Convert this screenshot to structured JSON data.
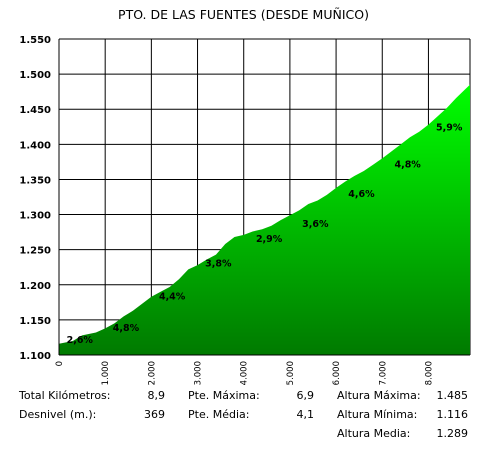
{
  "chart_data": {
    "type": "area",
    "title": "PTO. DE LAS FUENTES (DESDE MUÑICO)",
    "xlabel": "",
    "ylabel": "",
    "xlim": [
      0,
      8.9
    ],
    "ylim": [
      1.1,
      1.55
    ],
    "x_ticks": [
      "0",
      "1.000",
      "2.000",
      "3.000",
      "4.000",
      "5.000",
      "6.000",
      "7.000",
      "8.000"
    ],
    "y_ticks": [
      "1.100",
      "1.150",
      "1.200",
      "1.250",
      "1.300",
      "1.350",
      "1.400",
      "1.450",
      "1.500",
      "1.550"
    ],
    "grid": true,
    "legend": "none",
    "fill_color_top": "#00ff00",
    "fill_color_bottom": "#007a00",
    "series": [
      {
        "x": [
          0,
          0.3,
          0.5,
          0.8,
          1.0,
          1.2,
          1.4,
          1.6,
          1.8,
          2.0,
          2.2,
          2.4,
          2.6,
          2.8,
          3.0,
          3.2,
          3.4,
          3.6,
          3.8,
          4.0,
          4.2,
          4.4,
          4.6,
          4.8,
          5.0,
          5.2,
          5.4,
          5.6,
          5.8,
          6.0,
          6.2,
          6.4,
          6.6,
          6.8,
          7.0,
          7.2,
          7.4,
          7.6,
          7.8,
          8.0,
          8.2,
          8.4,
          8.6,
          8.9
        ],
        "values": [
          1.116,
          1.12,
          1.128,
          1.132,
          1.138,
          1.145,
          1.155,
          1.163,
          1.173,
          1.183,
          1.19,
          1.197,
          1.208,
          1.222,
          1.228,
          1.236,
          1.243,
          1.258,
          1.268,
          1.271,
          1.276,
          1.279,
          1.284,
          1.292,
          1.299,
          1.306,
          1.315,
          1.32,
          1.328,
          1.338,
          1.347,
          1.355,
          1.362,
          1.371,
          1.38,
          1.39,
          1.4,
          1.41,
          1.418,
          1.428,
          1.44,
          1.452,
          1.466,
          1.485
        ]
      }
    ],
    "data_labels": [
      {
        "x": 0.45,
        "y": 1.117,
        "text": "2,6%"
      },
      {
        "x": 1.45,
        "y": 1.134,
        "text": "4,8%"
      },
      {
        "x": 2.45,
        "y": 1.179,
        "text": "4,4%"
      },
      {
        "x": 3.45,
        "y": 1.226,
        "text": "3,8%"
      },
      {
        "x": 4.55,
        "y": 1.261,
        "text": "2,9%"
      },
      {
        "x": 5.55,
        "y": 1.282,
        "text": "3,6%"
      },
      {
        "x": 6.55,
        "y": 1.325,
        "text": "4,6%"
      },
      {
        "x": 7.55,
        "y": 1.367,
        "text": "4,8%"
      },
      {
        "x": 8.45,
        "y": 1.42,
        "text": "5,9%"
      }
    ]
  },
  "stats": {
    "total_km_label": "Total Kilómetros:",
    "total_km_value": "8,9",
    "desnivel_label": "Desnivel (m.):",
    "desnivel_value": "369",
    "pte_maxima_label": "Pte. Máxima:",
    "pte_maxima_value": "6,9",
    "pte_media_label": "Pte. Média:",
    "pte_media_value": "4,1",
    "altura_maxima_label": "Altura Máxima:",
    "altura_maxima_value": "1.485",
    "altura_minima_label": "Altura Mínima:",
    "altura_minima_value": "1.116",
    "altura_media_label": "Altura Media:",
    "altura_media_value": "1.289"
  }
}
